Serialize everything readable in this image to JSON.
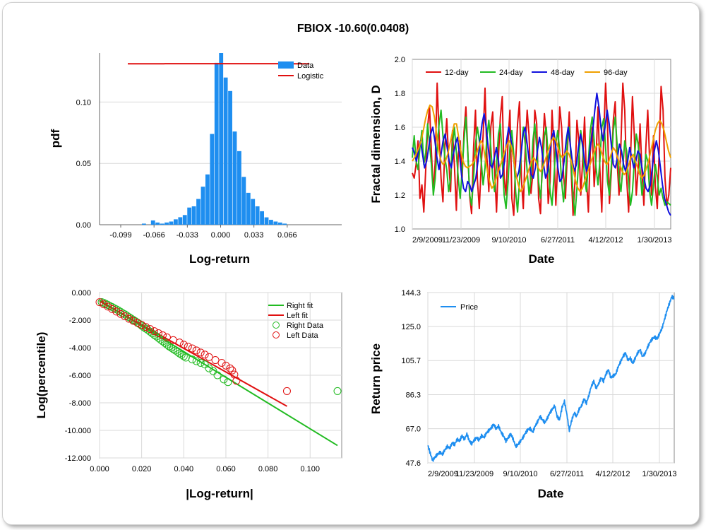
{
  "title": "FBIOX -10.60(0.0408)",
  "chart_data": [
    {
      "id": "hist",
      "type": "bar",
      "xlabel": "Log-return",
      "ylabel": "pdf",
      "xlim": [
        -0.12,
        0.12
      ],
      "ylim": [
        0,
        0.14
      ],
      "xticks": [
        "-0.099",
        "-0.066",
        "-0.033",
        "0.000",
        "0.033",
        "0.066"
      ],
      "yticks": [
        "0.00",
        "0.05",
        "0.10"
      ],
      "legend": [
        "Data",
        "Logistic"
      ],
      "colors": {
        "Data": "#1e8ef0",
        "Logistic": "#e01010"
      },
      "bin_width": 0.0045,
      "bins": [
        {
          "x": -0.0758,
          "y": 0.0009
        },
        {
          "x": -0.0668,
          "y": 0.0035
        },
        {
          "x": -0.0623,
          "y": 0.0018
        },
        {
          "x": -0.0578,
          "y": 0.0009
        },
        {
          "x": -0.0533,
          "y": 0.0018
        },
        {
          "x": -0.0488,
          "y": 0.0026
        },
        {
          "x": -0.0443,
          "y": 0.0044
        },
        {
          "x": -0.0398,
          "y": 0.0061
        },
        {
          "x": -0.0353,
          "y": 0.0079
        },
        {
          "x": -0.0308,
          "y": 0.014
        },
        {
          "x": -0.0263,
          "y": 0.015
        },
        {
          "x": -0.0218,
          "y": 0.021
        },
        {
          "x": -0.0173,
          "y": 0.031
        },
        {
          "x": -0.0128,
          "y": 0.041
        },
        {
          "x": -0.0083,
          "y": 0.074
        },
        {
          "x": -0.0038,
          "y": 0.132
        },
        {
          "x": 0.0007,
          "y": 0.14
        },
        {
          "x": 0.0052,
          "y": 0.12
        },
        {
          "x": 0.0097,
          "y": 0.109
        },
        {
          "x": 0.0142,
          "y": 0.076
        },
        {
          "x": 0.0187,
          "y": 0.06
        },
        {
          "x": 0.0232,
          "y": 0.039
        },
        {
          "x": 0.0277,
          "y": 0.026
        },
        {
          "x": 0.0322,
          "y": 0.021
        },
        {
          "x": 0.0367,
          "y": 0.015
        },
        {
          "x": 0.0412,
          "y": 0.011
        },
        {
          "x": 0.0457,
          "y": 0.006
        },
        {
          "x": 0.0502,
          "y": 0.004
        },
        {
          "x": 0.0547,
          "y": 0.0026
        },
        {
          "x": 0.0592,
          "y": 0.0018
        },
        {
          "x": 0.0637,
          "y": 0.0009
        }
      ],
      "logistic": {
        "mu": 0.0005,
        "peak": 0.1313
      }
    },
    {
      "id": "fractal",
      "type": "line",
      "xlabel": "Date",
      "ylabel": "Fractal dimension, D",
      "ylim": [
        1.0,
        2.0
      ],
      "xticks": [
        "2/9/2009",
        "11/23/2009",
        "9/10/2010",
        "6/27/2011",
        "4/12/2012",
        "1/30/2013"
      ],
      "yticks": [
        "1.0",
        "1.2",
        "1.4",
        "1.6",
        "1.8",
        "2.0"
      ],
      "series": [
        {
          "name": "12-day",
          "color": "#e01010",
          "values": [
            1.33,
            1.3,
            1.38,
            1.52,
            1.18,
            1.26,
            1.1,
            1.35,
            1.6,
            1.72,
            1.45,
            1.22,
            1.4,
            1.86,
            1.55,
            1.3,
            1.16,
            1.48,
            1.65,
            1.41,
            1.22,
            1.58,
            1.38,
            1.11,
            1.44,
            1.52,
            1.29,
            1.57,
            1.72,
            1.46,
            1.19,
            1.09,
            1.48,
            1.7,
            1.29,
            1.12,
            1.38,
            1.55,
            1.83,
            1.42,
            1.22,
            1.6,
            1.69,
            1.35,
            1.1,
            1.42,
            1.66,
            1.78,
            1.3,
            1.2,
            1.52,
            1.7,
            1.18,
            1.08,
            1.4,
            1.62,
            1.75,
            1.3,
            1.12,
            1.48,
            1.7,
            1.55,
            1.21,
            1.33,
            1.7,
            1.62,
            1.18,
            1.09,
            1.44,
            1.68,
            1.55,
            1.15,
            1.28,
            1.7,
            1.48,
            1.14,
            1.4,
            1.72,
            1.6,
            1.32,
            1.18,
            1.45,
            1.69,
            1.35,
            1.08,
            1.28,
            1.64,
            1.52,
            1.2,
            1.4,
            1.66,
            1.3,
            1.1,
            1.45,
            1.6,
            1.25,
            1.42,
            1.72,
            1.35,
            1.1,
            1.55,
            1.86,
            1.62,
            1.15,
            1.34,
            1.64,
            1.75,
            1.4,
            1.2,
            1.5,
            1.86,
            1.7,
            1.3,
            1.1,
            1.42,
            1.78,
            1.55,
            1.2,
            1.35,
            1.62,
            1.34,
            1.14,
            1.48,
            1.7,
            1.4,
            1.2,
            1.55,
            1.25,
            1.12,
            1.46,
            1.84,
            1.7,
            1.3,
            1.14,
            1.2,
            1.36
          ]
        },
        {
          "name": "24-day",
          "color": "#22bb22",
          "values": [
            1.42,
            1.55,
            1.4,
            1.35,
            1.48,
            1.58,
            1.38,
            1.45,
            1.62,
            1.5,
            1.38,
            1.2,
            1.3,
            1.48,
            1.62,
            1.7,
            1.55,
            1.42,
            1.35,
            1.22,
            1.3,
            1.5,
            1.6,
            1.45,
            1.3,
            1.18,
            1.34,
            1.52,
            1.66,
            1.45,
            1.2,
            1.14,
            1.3,
            1.5,
            1.6,
            1.52,
            1.4,
            1.26,
            1.36,
            1.55,
            1.64,
            1.48,
            1.3,
            1.22,
            1.38,
            1.56,
            1.62,
            1.4,
            1.2,
            1.12,
            1.28,
            1.48,
            1.58,
            1.44,
            1.22,
            1.1,
            1.28,
            1.46,
            1.6,
            1.5,
            1.34,
            1.2,
            1.3,
            1.52,
            1.62,
            1.48,
            1.28,
            1.18,
            1.35,
            1.55,
            1.6,
            1.42,
            1.22,
            1.14,
            1.3,
            1.5,
            1.58,
            1.46,
            1.28,
            1.16,
            1.3,
            1.52,
            1.6,
            1.4,
            1.2,
            1.08,
            1.24,
            1.42,
            1.58,
            1.48,
            1.3,
            1.22,
            1.4,
            1.58,
            1.66,
            1.52,
            1.36,
            1.26,
            1.4,
            1.6,
            1.65,
            1.48,
            1.28,
            1.2,
            1.38,
            1.58,
            1.66,
            1.5,
            1.3,
            1.22,
            1.36,
            1.52,
            1.46,
            1.28,
            1.14,
            1.22,
            1.4,
            1.56,
            1.5,
            1.35,
            1.2,
            1.28,
            1.44,
            1.4,
            1.22,
            1.14,
            1.26,
            1.38,
            1.3,
            1.2,
            1.24,
            1.18,
            1.14,
            1.16,
            1.15,
            1.14
          ]
        },
        {
          "name": "48-day",
          "color": "#1010dd",
          "values": [
            1.48,
            1.45,
            1.4,
            1.46,
            1.52,
            1.44,
            1.36,
            1.4,
            1.48,
            1.56,
            1.6,
            1.52,
            1.42,
            1.35,
            1.44,
            1.52,
            1.56,
            1.48,
            1.4,
            1.36,
            1.44,
            1.5,
            1.54,
            1.44,
            1.32,
            1.24,
            1.22,
            1.28,
            1.26,
            1.22,
            1.26,
            1.3,
            1.4,
            1.52,
            1.62,
            1.68,
            1.6,
            1.48,
            1.38,
            1.36,
            1.42,
            1.48,
            1.4,
            1.3,
            1.32,
            1.4,
            1.52,
            1.6,
            1.54,
            1.44,
            1.36,
            1.3,
            1.34,
            1.44,
            1.56,
            1.6,
            1.5,
            1.4,
            1.32,
            1.3,
            1.36,
            1.46,
            1.54,
            1.48,
            1.38,
            1.3,
            1.34,
            1.44,
            1.54,
            1.58,
            1.48,
            1.36,
            1.28,
            1.3,
            1.4,
            1.52,
            1.6,
            1.5,
            1.4,
            1.34,
            1.38,
            1.48,
            1.56,
            1.5,
            1.4,
            1.34,
            1.4,
            1.5,
            1.58,
            1.7,
            1.8,
            1.72,
            1.6,
            1.52,
            1.6,
            1.7,
            1.62,
            1.5,
            1.38,
            1.36,
            1.42,
            1.5,
            1.46,
            1.38,
            1.34,
            1.4,
            1.48,
            1.42,
            1.36,
            1.4,
            1.46,
            1.44,
            1.36,
            1.3,
            1.24,
            1.22,
            1.26,
            1.36,
            1.46,
            1.52,
            1.46,
            1.36,
            1.26,
            1.18,
            1.14,
            1.1,
            1.08
          ]
        },
        {
          "name": "96-day",
          "color": "#f0a000",
          "values": [
            1.4,
            1.42,
            1.45,
            1.48,
            1.52,
            1.58,
            1.65,
            1.7,
            1.73,
            1.72,
            1.66,
            1.56,
            1.46,
            1.4,
            1.38,
            1.4,
            1.44,
            1.5,
            1.56,
            1.62,
            1.62,
            1.54,
            1.46,
            1.4,
            1.37,
            1.36,
            1.37,
            1.38,
            1.4,
            1.44,
            1.48,
            1.52,
            1.5,
            1.42,
            1.34,
            1.28,
            1.24,
            1.26,
            1.3,
            1.34,
            1.38,
            1.42,
            1.46,
            1.5,
            1.52,
            1.48,
            1.4,
            1.32,
            1.26,
            1.22,
            1.24,
            1.28,
            1.32,
            1.36,
            1.4,
            1.42,
            1.4,
            1.36,
            1.34,
            1.36,
            1.4,
            1.44,
            1.48,
            1.52,
            1.54,
            1.52,
            1.48,
            1.44,
            1.42,
            1.44,
            1.46,
            1.44,
            1.4,
            1.34,
            1.28,
            1.24,
            1.22,
            1.24,
            1.28,
            1.32,
            1.36,
            1.4,
            1.44,
            1.48,
            1.5,
            1.48,
            1.44,
            1.4,
            1.38,
            1.4,
            1.44,
            1.48,
            1.46,
            1.42,
            1.38,
            1.34,
            1.32,
            1.34,
            1.38,
            1.42,
            1.44,
            1.4,
            1.36,
            1.32,
            1.3,
            1.32,
            1.36,
            1.4,
            1.46,
            1.52,
            1.58,
            1.62,
            1.64,
            1.62,
            1.58,
            1.52,
            1.46,
            1.42
          ]
        }
      ]
    },
    {
      "id": "percentile",
      "type": "scatter",
      "xlabel": "|Log-return|",
      "ylabel": "Log(percentile)",
      "xlim": [
        0,
        0.115
      ],
      "ylim": [
        -12,
        0
      ],
      "xticks": [
        "0.000",
        "0.020",
        "0.040",
        "0.060",
        "0.080",
        "0.100"
      ],
      "yticks": [
        "0.000",
        "-2.000",
        "-4.000",
        "-6.000",
        "-8.000",
        "-10.000",
        "-12.000"
      ],
      "fits": [
        {
          "name": "Right fit",
          "color": "#22bb22",
          "x": [
            0,
            0.113
          ],
          "y": [
            -0.55,
            -11.1
          ]
        },
        {
          "name": "Left fit",
          "color": "#e01010",
          "x": [
            0,
            0.089
          ],
          "y": [
            -0.62,
            -8.25
          ]
        }
      ],
      "scatter": [
        {
          "name": "Right Data",
          "color": "#22bb22",
          "x": [
            0.001,
            0.002,
            0.003,
            0.004,
            0.005,
            0.006,
            0.007,
            0.008,
            0.009,
            0.01,
            0.011,
            0.012,
            0.013,
            0.014,
            0.015,
            0.016,
            0.017,
            0.018,
            0.019,
            0.02,
            0.021,
            0.022,
            0.023,
            0.024,
            0.025,
            0.026,
            0.027,
            0.028,
            0.029,
            0.03,
            0.031,
            0.032,
            0.033,
            0.034,
            0.035,
            0.036,
            0.037,
            0.038,
            0.039,
            0.04,
            0.041,
            0.044,
            0.046,
            0.048,
            0.05,
            0.052,
            0.054,
            0.056,
            0.059,
            0.061,
            0.113
          ],
          "y": [
            -0.69,
            -0.75,
            -0.82,
            -0.9,
            -0.98,
            -1.05,
            -1.14,
            -1.22,
            -1.3,
            -1.4,
            -1.5,
            -1.58,
            -1.68,
            -1.78,
            -1.88,
            -1.98,
            -2.08,
            -2.18,
            -2.28,
            -2.4,
            -2.52,
            -2.62,
            -2.72,
            -2.84,
            -2.96,
            -3.08,
            -3.18,
            -3.3,
            -3.42,
            -3.54,
            -3.66,
            -3.78,
            -3.9,
            -4.0,
            -4.1,
            -4.2,
            -4.3,
            -4.42,
            -4.52,
            -4.62,
            -4.72,
            -4.85,
            -4.98,
            -5.1,
            -5.22,
            -5.5,
            -5.7,
            -6.0,
            -6.3,
            -6.5,
            -7.15
          ]
        },
        {
          "name": "Left Data",
          "color": "#e01010",
          "x": [
            0.0,
            0.002,
            0.004,
            0.006,
            0.008,
            0.01,
            0.012,
            0.014,
            0.016,
            0.018,
            0.02,
            0.022,
            0.024,
            0.026,
            0.028,
            0.03,
            0.032,
            0.035,
            0.038,
            0.04,
            0.042,
            0.044,
            0.046,
            0.048,
            0.05,
            0.052,
            0.055,
            0.058,
            0.06,
            0.062,
            0.063,
            0.064,
            0.065,
            0.089
          ],
          "y": [
            -0.7,
            -0.85,
            -1.02,
            -1.2,
            -1.38,
            -1.55,
            -1.72,
            -1.9,
            -2.05,
            -2.2,
            -2.35,
            -2.5,
            -2.65,
            -2.8,
            -2.95,
            -3.1,
            -3.25,
            -3.45,
            -3.62,
            -3.78,
            -3.92,
            -4.05,
            -4.2,
            -4.35,
            -4.5,
            -4.68,
            -4.9,
            -5.1,
            -5.3,
            -5.5,
            -5.65,
            -5.95,
            -6.4,
            -7.15
          ]
        }
      ]
    },
    {
      "id": "price",
      "type": "line",
      "xlabel": "Date",
      "ylabel": "Return price",
      "ylim": [
        47.6,
        144.3
      ],
      "xticks": [
        "2/9/2009",
        "11/23/2009",
        "9/10/2010",
        "6/27/2011",
        "4/12/2012",
        "1/30/2013"
      ],
      "yticks": [
        "144.3",
        "125.0",
        "105.7",
        "86.3",
        "67.0",
        "47.6"
      ],
      "series": [
        {
          "name": "Price",
          "color": "#1e8ef0",
          "values": [
            57.5,
            53.0,
            49.0,
            51.0,
            52.5,
            53.5,
            52.5,
            55.0,
            57.0,
            56.0,
            59.0,
            58.0,
            61.0,
            60.0,
            63.0,
            61.0,
            64.0,
            60.0,
            58.5,
            60.5,
            62.0,
            60.5,
            63.0,
            62.0,
            64.5,
            66.0,
            67.5,
            69.5,
            67.0,
            68.5,
            65.0,
            63.0,
            60.0,
            62.0,
            64.0,
            61.0,
            57.0,
            58.0,
            60.0,
            62.0,
            64.5,
            66.5,
            67.0,
            65.0,
            68.5,
            71.0,
            74.0,
            72.0,
            70.5,
            73.0,
            76.0,
            78.0,
            80.0,
            74.0,
            72.0,
            79.0,
            82.5,
            75.0,
            66.0,
            72.0,
            76.0,
            74.0,
            78.0,
            80.0,
            84.0,
            81.5,
            86.0,
            91.0,
            94.0,
            90.0,
            92.5,
            96.0,
            94.0,
            98.0,
            100.5,
            96.0,
            97.0,
            98.0,
            102.0,
            105.0,
            108.0,
            110.0,
            106.0,
            107.0,
            104.0,
            107.0,
            110.0,
            112.0,
            108.0,
            109.5,
            113.0,
            116.0,
            118.0,
            119.0,
            118.0,
            121.0,
            124.0,
            129.0,
            134.0,
            138.0,
            142.0,
            141.0
          ]
        }
      ]
    }
  ]
}
